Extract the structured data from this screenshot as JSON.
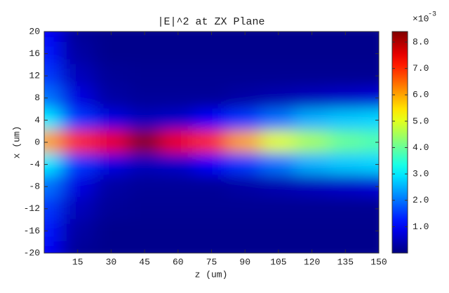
{
  "chart_data": {
    "type": "heatmap",
    "title": "|E|^2 at ZX Plane",
    "x_label": "z (um)",
    "y_label": "x (um)",
    "xlim": [
      0,
      150
    ],
    "xticks": [
      15,
      30,
      45,
      60,
      75,
      90,
      105,
      120,
      135,
      150
    ],
    "ylim": [
      -20,
      20
    ],
    "yticks": [
      -20,
      -16,
      -12,
      -8,
      -4,
      0,
      4,
      8,
      12,
      16,
      20
    ],
    "colormap": "jet",
    "clim": [
      0,
      8.4
    ],
    "cticks": [
      {
        "value": 1,
        "label": "1.0"
      },
      {
        "value": 2,
        "label": "2.0"
      },
      {
        "value": 3,
        "label": "3.0"
      },
      {
        "value": 4,
        "label": "4.0"
      },
      {
        "value": 5,
        "label": "5.0"
      },
      {
        "value": 6,
        "label": "6.0"
      },
      {
        "value": 7,
        "label": "7.0"
      },
      {
        "value": 8,
        "label": "8.0"
      }
    ],
    "color_scale_multiplier": "×10",
    "color_scale_exponent": "-3",
    "z": [
      0,
      15,
      30,
      45,
      60,
      75,
      90,
      105,
      120,
      135,
      150
    ],
    "x": [
      20,
      16,
      12,
      8,
      4,
      0,
      -4,
      -8,
      -12,
      -16,
      -20
    ],
    "values": [
      [
        1.0,
        0.2,
        0.1,
        0.1,
        0.1,
        0.1,
        0.1,
        0.1,
        0.1,
        0.1,
        0.1
      ],
      [
        1.2,
        0.3,
        0.1,
        0.1,
        0.1,
        0.1,
        0.1,
        0.1,
        0.1,
        0.1,
        0.1
      ],
      [
        1.5,
        0.5,
        0.2,
        0.15,
        0.15,
        0.15,
        0.15,
        0.15,
        0.15,
        0.15,
        0.15
      ],
      [
        2.0,
        0.8,
        0.3,
        0.2,
        0.2,
        0.2,
        0.3,
        0.4,
        0.5,
        0.6,
        0.7
      ],
      [
        3.0,
        1.5,
        0.8,
        0.5,
        0.6,
        1.0,
        1.5,
        2.0,
        2.5,
        2.7,
        2.8
      ],
      [
        6.0,
        7.0,
        7.5,
        8.3,
        7.5,
        7.0,
        6.0,
        5.0,
        4.5,
        4.0,
        3.8
      ],
      [
        3.0,
        1.5,
        0.8,
        0.5,
        0.6,
        1.0,
        1.5,
        2.0,
        2.5,
        2.7,
        2.8
      ],
      [
        2.0,
        0.8,
        0.3,
        0.2,
        0.2,
        0.2,
        0.3,
        0.4,
        0.5,
        0.6,
        0.7
      ],
      [
        1.5,
        0.5,
        0.2,
        0.15,
        0.15,
        0.15,
        0.15,
        0.15,
        0.15,
        0.15,
        0.15
      ],
      [
        1.2,
        0.3,
        0.1,
        0.1,
        0.1,
        0.1,
        0.1,
        0.1,
        0.1,
        0.1,
        0.1
      ],
      [
        1.0,
        0.2,
        0.1,
        0.1,
        0.1,
        0.1,
        0.1,
        0.1,
        0.1,
        0.1,
        0.1
      ]
    ]
  }
}
